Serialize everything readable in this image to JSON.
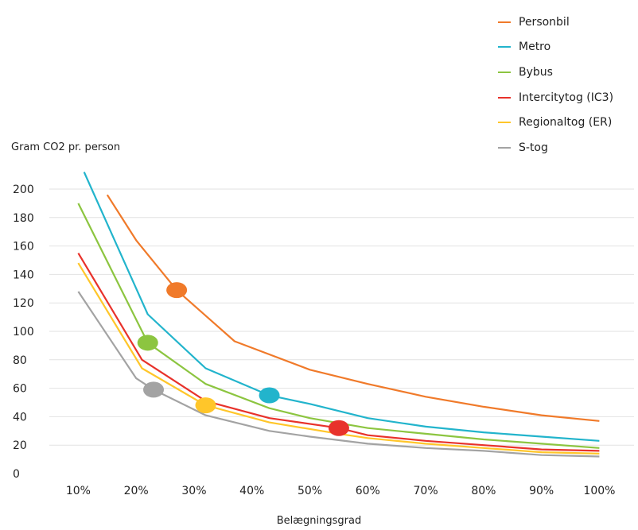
{
  "chart_data": {
    "type": "line",
    "title": "",
    "xlabel": "Belægningsgrad",
    "ylabel": "Gram CO2 pr. person",
    "x_ticks": [
      "10%",
      "20%",
      "30%",
      "40%",
      "50%",
      "60%",
      "70%",
      "80%",
      "90%",
      "100%"
    ],
    "y_ticks": [
      0,
      20,
      40,
      60,
      80,
      100,
      120,
      140,
      160,
      180,
      200
    ],
    "xlim": [
      5,
      102
    ],
    "ylim": [
      0,
      210
    ],
    "grid": "horizontal",
    "legend_position": "top-right",
    "series": [
      {
        "name": "Personbil",
        "color": "#f07a2a",
        "x": [
          15,
          20,
          27,
          37,
          50,
          60,
          70,
          80,
          90,
          100
        ],
        "y": [
          196,
          164,
          129,
          93,
          73,
          63,
          54,
          47,
          41,
          37
        ],
        "marker": {
          "x": 27,
          "y": 129
        }
      },
      {
        "name": "Metro",
        "color": "#22b4cc",
        "x": [
          11,
          22,
          32,
          43,
          50,
          60,
          70,
          80,
          90,
          100
        ],
        "y": [
          212,
          112,
          74,
          55,
          49,
          39,
          33,
          29,
          26,
          23
        ],
        "marker": {
          "x": 43,
          "y": 55
        }
      },
      {
        "name": "Bybus",
        "color": "#8cc540",
        "x": [
          10,
          22,
          32,
          43,
          50,
          60,
          70,
          80,
          90,
          100
        ],
        "y": [
          190,
          92,
          63,
          46,
          39,
          32,
          28,
          24,
          21,
          18
        ],
        "marker": {
          "x": 22,
          "y": 92
        }
      },
      {
        "name": "Intercitytog (IC3)",
        "color": "#e8322b",
        "x": [
          10,
          21,
          32,
          43,
          55,
          60,
          70,
          80,
          90,
          100
        ],
        "y": [
          155,
          80,
          51,
          39,
          32,
          27,
          23,
          20,
          17,
          16
        ],
        "marker": {
          "x": 55,
          "y": 32
        }
      },
      {
        "name": "Regionaltog (ER)",
        "color": "#ffc62a",
        "x": [
          10,
          21,
          32,
          43,
          55,
          60,
          70,
          80,
          90,
          100
        ],
        "y": [
          148,
          74,
          48,
          36,
          28,
          25,
          21,
          18,
          15,
          14
        ],
        "marker": {
          "x": 32,
          "y": 48
        }
      },
      {
        "name": "S-tog",
        "color": "#a3a3a3",
        "x": [
          10,
          20,
          23,
          32,
          43,
          50,
          60,
          70,
          80,
          90,
          100
        ],
        "y": [
          128,
          67,
          59,
          41,
          30,
          26,
          21,
          18,
          16,
          13,
          12
        ],
        "marker": {
          "x": 23,
          "y": 59
        }
      }
    ]
  }
}
